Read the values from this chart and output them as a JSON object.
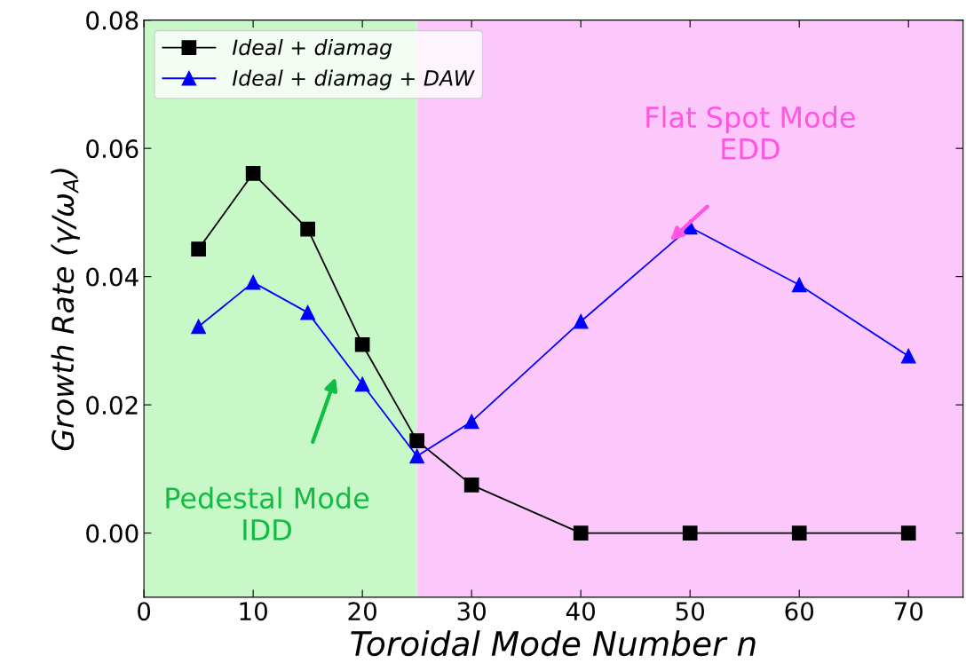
{
  "chart_data": {
    "type": "line",
    "xlabel": "Toroidal Mode Number n",
    "ylabel": "Growth Rate (γ/ω$_{A}$)",
    "x": [
      5,
      10,
      15,
      20,
      25,
      30,
      40,
      50,
      60,
      70
    ],
    "series": [
      {
        "name": "Ideal + diamag",
        "color": "#000000",
        "marker": "square",
        "values": [
          0.0443,
          0.0561,
          0.0474,
          0.0294,
          0.0144,
          0.0075,
          0.0,
          0.0,
          0.0,
          0.0
        ]
      },
      {
        "name": "Ideal + diamag + DAW",
        "color": "#0000ff",
        "marker": "triangle",
        "values": [
          0.0322,
          0.0391,
          0.0344,
          0.0232,
          0.012,
          0.0174,
          0.033,
          0.0477,
          0.0387,
          0.0276
        ]
      }
    ],
    "xlim": [
      0,
      75
    ],
    "ylim": [
      -0.01,
      0.08
    ],
    "xticks": [
      0,
      10,
      20,
      30,
      40,
      50,
      60,
      70
    ],
    "yticks": [
      {
        "value": 0,
        "label": "0.00"
      },
      {
        "value": 0.02,
        "label": "0.02"
      },
      {
        "value": 0.04,
        "label": "0.04"
      },
      {
        "value": 0.06,
        "label": "0.06"
      },
      {
        "value": 0.08,
        "label": "0.08"
      }
    ],
    "bands": [
      {
        "axis": "x",
        "from": 0,
        "to": 25,
        "color": "#c8f7c8"
      },
      {
        "axis": "x",
        "from": 25,
        "to": 75,
        "color": "#fcc8fc"
      }
    ],
    "annotations": [
      "Flat Spot Mode\nEDD",
      "Pedestal Mode\nIDD"
    ],
    "legend": "top left",
    "grid": false,
    "line_style": "solid"
  }
}
